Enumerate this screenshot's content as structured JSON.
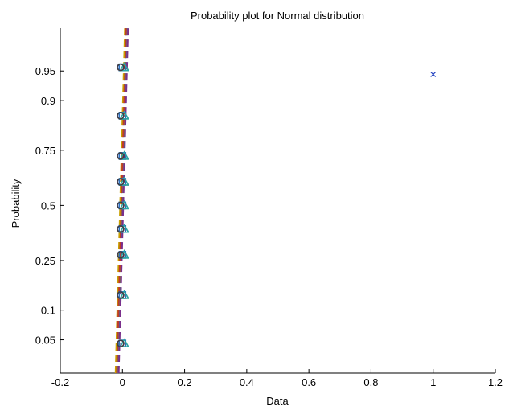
{
  "chart_data": {
    "type": "scatter",
    "title": "Probability plot for Normal distribution",
    "xlabel": "Data",
    "ylabel": "Probability",
    "xlim": [
      -0.2,
      1.2
    ],
    "xticks": [
      -0.2,
      0,
      0.2,
      0.4,
      0.6,
      0.8,
      1,
      1.2
    ],
    "xtick_labels": [
      "-0.2",
      "0",
      "0.2",
      "0.4",
      "0.6",
      "0.8",
      "1",
      "1.2"
    ],
    "ylim": [
      0.02,
      0.985
    ],
    "yscale": "normal-probability",
    "yticks": [
      0.05,
      0.1,
      0.25,
      0.5,
      0.75,
      0.9,
      0.95
    ],
    "ytick_labels": [
      "0.05",
      "0.1",
      "0.25",
      "0.5",
      "0.75",
      "0.9",
      "0.95"
    ],
    "grid": false,
    "probability_levels": [
      0.0455,
      0.1364,
      0.2727,
      0.3864,
      0.5,
      0.6136,
      0.7273,
      0.8636,
      0.9545
    ],
    "clustered_points": {
      "x_offsets": [
        -0.006,
        0.0,
        0.006
      ],
      "colors": [
        "#1f1fbf",
        "#1fa0a0",
        "#556b2f",
        "#7a2f8c",
        "#2b6fbf",
        "#2aa8a8",
        "#404040"
      ]
    },
    "series": [
      {
        "x": [
          1.0
        ],
        "y": [
          0.9455
        ],
        "marker": "x",
        "color": "#1f3fbf"
      }
    ],
    "reference_lines": [
      {
        "color": "#1f1fbf",
        "x_at_ylim": [
          -0.02,
          0.012
        ]
      },
      {
        "color": "#1fa0a0",
        "x_at_ylim": [
          -0.015,
          0.015
        ]
      },
      {
        "color": "#7a2f8c",
        "x_at_ylim": [
          -0.012,
          0.018
        ]
      },
      {
        "color": "#c8a000",
        "x_at_ylim": [
          -0.022,
          0.008
        ]
      },
      {
        "color": "#c0392b",
        "x_at_ylim": [
          -0.018,
          0.012
        ]
      }
    ]
  }
}
